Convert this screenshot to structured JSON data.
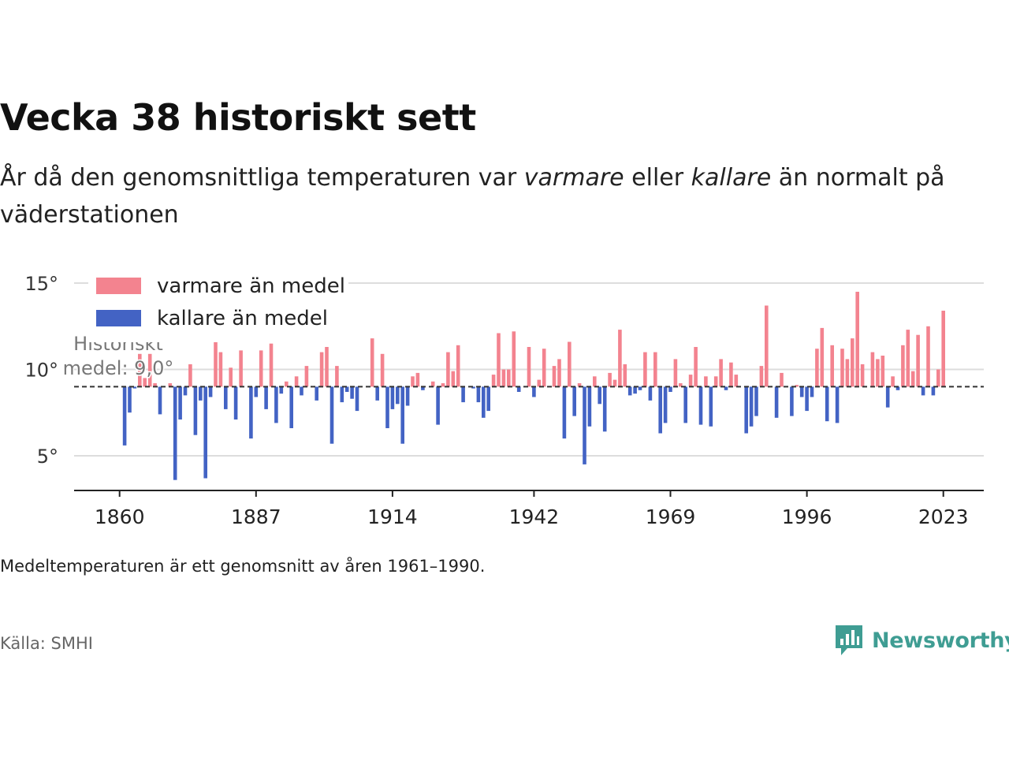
{
  "title": "Vecka 38 historiskt sett",
  "subtitle": {
    "part1": "År då den genomsnittliga temperaturen var ",
    "warm_word": "varmare",
    "part2": " eller ",
    "cold_word": "kallare",
    "part3": " än normalt på väderstationen"
  },
  "note": "Medeltemperaturen är ett genomsnitt av åren 1961–1990.",
  "source": "Källa: SMHI",
  "brand": "Newsworthy",
  "colors": {
    "warm": "#f3838f",
    "cold": "#4363c4",
    "grid": "#dddddd",
    "axis": "#222222",
    "brand": "#3f9d93"
  },
  "chart_data": {
    "type": "bar",
    "baseline": 9.0,
    "baseline_label_line1": "Historiskt",
    "baseline_label_line2": "medel: 9,0°",
    "ylim": [
      3,
      15.5
    ],
    "yticks": [
      5,
      10,
      15
    ],
    "ytick_labels": [
      "5°",
      "10°",
      "15°"
    ],
    "xlim": [
      1851,
      2031
    ],
    "xticks": [
      1860,
      1887,
      1914,
      1942,
      1969,
      1996,
      2023
    ],
    "legend": [
      {
        "name": "varmare än medel",
        "color": "#f3838f"
      },
      {
        "name": "kallare än medel",
        "color": "#4363c4"
      }
    ],
    "legend_position": "top-left",
    "grid": true,
    "x": [
      1861,
      1862,
      1863,
      1864,
      1865,
      1866,
      1867,
      1868,
      1869,
      1870,
      1871,
      1872,
      1873,
      1874,
      1875,
      1876,
      1877,
      1878,
      1879,
      1880,
      1881,
      1882,
      1883,
      1884,
      1885,
      1886,
      1887,
      1888,
      1889,
      1890,
      1891,
      1892,
      1893,
      1894,
      1895,
      1896,
      1897,
      1898,
      1899,
      1900,
      1901,
      1902,
      1903,
      1904,
      1905,
      1906,
      1907,
      1908,
      1909,
      1910,
      1911,
      1912,
      1913,
      1914,
      1915,
      1916,
      1917,
      1918,
      1919,
      1920,
      1921,
      1922,
      1923,
      1924,
      1925,
      1926,
      1927,
      1928,
      1929,
      1930,
      1931,
      1932,
      1933,
      1934,
      1935,
      1936,
      1937,
      1938,
      1939,
      1940,
      1941,
      1942,
      1943,
      1944,
      1945,
      1946,
      1947,
      1948,
      1949,
      1950,
      1951,
      1952,
      1953,
      1954,
      1955,
      1956,
      1957,
      1958,
      1959,
      1960,
      1961,
      1962,
      1963,
      1964,
      1965,
      1966,
      1967,
      1968,
      1969,
      1970,
      1971,
      1972,
      1973,
      1974,
      1975,
      1976,
      1977,
      1978,
      1979,
      1980,
      1981,
      1982,
      1983,
      1984,
      1985,
      1986,
      1987,
      1988,
      1989,
      1990,
      1991,
      1992,
      1993,
      1994,
      1995,
      1996,
      1997,
      1998,
      1999,
      2000,
      2001,
      2002,
      2003,
      2004,
      2005,
      2006,
      2007,
      2008,
      2009,
      2010,
      2011,
      2012,
      2013,
      2014,
      2015,
      2016,
      2017,
      2018,
      2019,
      2020,
      2021,
      2022,
      2023
    ],
    "values": [
      5.6,
      7.5,
      8.9,
      10.9,
      9.5,
      10.9,
      9.2,
      7.4,
      9.0,
      9.2,
      3.6,
      7.1,
      8.5,
      10.3,
      6.2,
      8.2,
      3.7,
      8.4,
      11.7,
      11.0,
      7.7,
      10.1,
      7.1,
      11.1,
      9.0,
      6.0,
      8.4,
      11.1,
      7.7,
      11.5,
      6.9,
      8.6,
      9.3,
      6.6,
      9.6,
      8.5,
      10.2,
      9.0,
      8.2,
      11.0,
      11.3,
      5.7,
      10.2,
      8.1,
      8.7,
      8.3,
      7.6,
      9.0,
      9.0,
      11.8,
      8.2,
      10.9,
      6.6,
      7.7,
      8.0,
      5.7,
      7.9,
      9.6,
      9.8,
      8.8,
      9.0,
      9.3,
      6.8,
      9.2,
      11.0,
      9.9,
      11.4,
      8.1,
      9.0,
      8.9,
      8.1,
      7.2,
      7.6,
      9.7,
      12.1,
      10.0,
      10.0,
      12.2,
      8.7,
      9.0,
      11.3,
      8.4,
      9.4,
      11.2,
      9.0,
      10.2,
      10.6,
      6.0,
      11.6,
      7.3,
      9.2,
      4.5,
      6.7,
      9.6,
      8.0,
      6.4,
      9.8,
      9.4,
      12.3,
      10.3,
      8.5,
      8.6,
      8.8,
      11.0,
      8.2,
      11.0,
      6.3,
      6.9,
      8.7,
      10.6,
      9.2,
      6.9,
      9.7,
      11.3,
      6.8,
      9.6,
      6.7,
      9.6,
      10.6,
      8.8,
      10.4,
      9.7,
      9.0,
      6.3,
      6.7,
      7.3,
      10.2,
      13.7,
      9.0,
      7.2,
      9.8,
      9.0,
      7.3,
      9.1,
      8.4,
      7.6,
      8.4,
      11.2,
      12.4,
      7.0,
      11.4,
      6.9,
      11.2,
      10.6,
      11.8,
      14.5,
      10.3,
      9.0,
      11.0,
      10.6,
      10.8,
      7.8,
      9.6,
      8.8,
      11.4,
      12.3,
      9.9,
      12.0,
      8.5,
      12.5,
      8.5,
      10.0,
      13.4
    ]
  }
}
